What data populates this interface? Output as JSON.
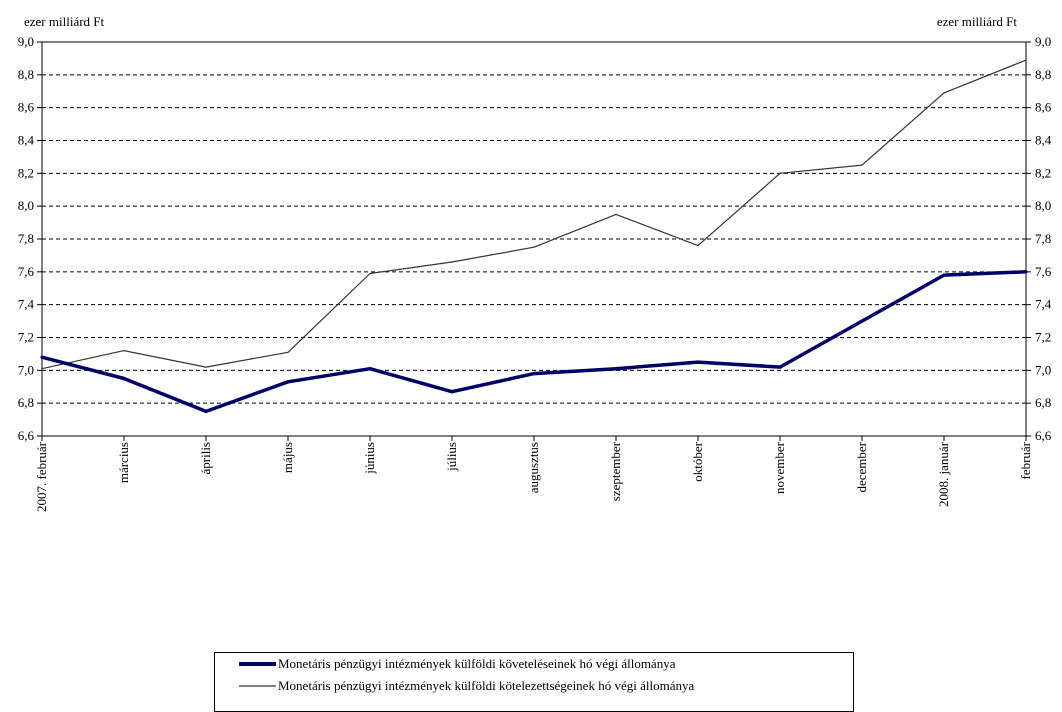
{
  "chart_data": {
    "type": "line",
    "y_unit_left": "ezer milliárd Ft",
    "y_unit_right": "ezer milliárd Ft",
    "ylim": [
      6.6,
      9.0
    ],
    "y_ticks": [
      "6,6",
      "6,8",
      "7,0",
      "7,2",
      "7,4",
      "7,6",
      "7,8",
      "8,0",
      "8,2",
      "8,4",
      "8,6",
      "8,8",
      "9,0"
    ],
    "grid": true,
    "categories": [
      "2007. február",
      "március",
      "április",
      "május",
      "június",
      "július",
      "augusztus",
      "szeptember",
      "október",
      "november",
      "december",
      "2008. január",
      "február"
    ],
    "series": [
      {
        "name": "Monetáris pénzügyi intézmények külföldi követeléseinek hó végi állománya",
        "color": "#000066",
        "line": "thick",
        "values": [
          7.08,
          6.95,
          6.75,
          6.93,
          7.01,
          6.87,
          6.98,
          7.01,
          7.05,
          7.02,
          7.3,
          7.58,
          7.6
        ]
      },
      {
        "name": "Monetáris pénzügyi intézmények külföldi kötelezettségeinek hó végi állománya",
        "color": "#333333",
        "line": "thin",
        "values": [
          7.01,
          7.12,
          7.02,
          7.11,
          7.59,
          7.66,
          7.75,
          7.95,
          7.76,
          8.2,
          8.25,
          8.69,
          8.89
        ]
      }
    ],
    "legend_position": "bottom-center"
  }
}
